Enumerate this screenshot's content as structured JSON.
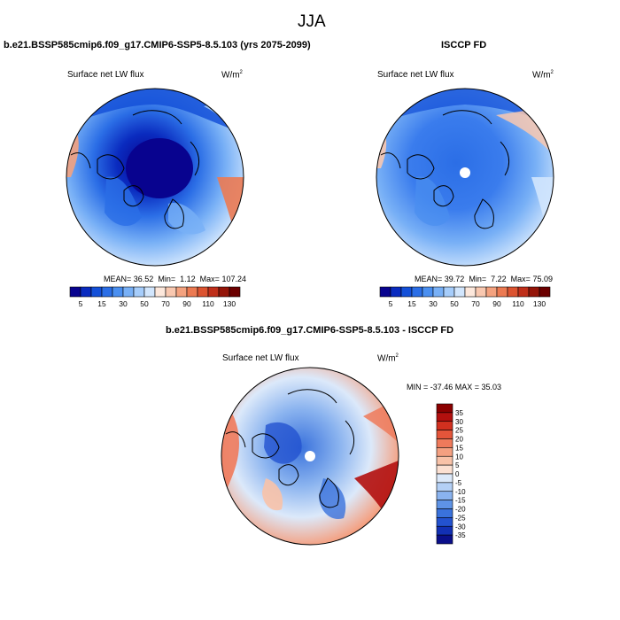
{
  "page_title": "JJA",
  "chart_data": [
    {
      "type": "heatmap",
      "projection": "north-polar-stereographic",
      "title": "b.e21.BSSP585cmip6.f09_g17.CMIP6-SSP5-8.5.103 (yrs 2075-2099)",
      "variable": "Surface net LW flux",
      "units": "W/m",
      "units_exp": "2",
      "stats": {
        "mean_label": "MEAN=",
        "mean": "36.52",
        "min_label": "Min=",
        "min": "1.12",
        "max_label": "Max=",
        "max": "107.24"
      },
      "colorbar": {
        "levels": [
          5,
          10,
          15,
          20,
          30,
          40,
          50,
          60,
          70,
          80,
          90,
          100,
          110,
          120,
          130
        ],
        "tick_labels": [
          "5",
          "15",
          "30",
          "50",
          "70",
          "90",
          "110",
          "130"
        ],
        "colors": [
          "#08038f",
          "#0a2bbf",
          "#1450d8",
          "#2b6ee6",
          "#4a8ff0",
          "#78b0f6",
          "#a6cdfb",
          "#d2e6fd",
          "#fde8dc",
          "#f9c8b0",
          "#f4a27f",
          "#ec7a52",
          "#dc5431",
          "#bf2f1a",
          "#941509",
          "#6b0000"
        ]
      }
    },
    {
      "type": "heatmap",
      "projection": "north-polar-stereographic",
      "title": "ISCCP FD",
      "variable": "Surface net LW flux",
      "units": "W/m",
      "units_exp": "2",
      "stats": {
        "mean_label": "MEAN=",
        "mean": "39.72",
        "min_label": "Min=",
        "min": "7.22",
        "max_label": "Max=",
        "max": "75.09"
      },
      "colorbar": {
        "levels": [
          5,
          10,
          15,
          20,
          30,
          40,
          50,
          60,
          70,
          80,
          90,
          100,
          110,
          120,
          130
        ],
        "tick_labels": [
          "5",
          "15",
          "30",
          "50",
          "70",
          "90",
          "110",
          "130"
        ],
        "colors": [
          "#08038f",
          "#0a2bbf",
          "#1450d8",
          "#2b6ee6",
          "#4a8ff0",
          "#78b0f6",
          "#a6cdfb",
          "#d2e6fd",
          "#fde8dc",
          "#f9c8b0",
          "#f4a27f",
          "#ec7a52",
          "#dc5431",
          "#bf2f1a",
          "#941509",
          "#6b0000"
        ]
      }
    },
    {
      "type": "heatmap",
      "projection": "north-polar-stereographic",
      "title": "b.e21.BSSP585cmip6.f09_g17.CMIP6-SSP5-8.5.103 - ISCCP FD",
      "variable": "Surface net LW flux",
      "units": "W/m",
      "units_exp": "2",
      "stats_text": "MIN = -37.46 MAX =  35.03",
      "colorbar": {
        "levels": [
          35,
          30,
          25,
          20,
          15,
          10,
          5,
          0,
          -5,
          -10,
          -15,
          -20,
          -25,
          -30,
          -35
        ],
        "tick_labels": [
          "35",
          "30",
          "25",
          "20",
          "15",
          "10",
          "5",
          "0",
          "-5",
          "-10",
          "-15",
          "-20",
          "-25",
          "-30",
          "-35"
        ],
        "colors": [
          "#8b0000",
          "#b3100e",
          "#d2301f",
          "#e4553a",
          "#ef7a5b",
          "#f4a081",
          "#f8c2a8",
          "#fbe0d2",
          "#dce9fa",
          "#b4d0f6",
          "#8ab3ef",
          "#5e93e6",
          "#3a72dc",
          "#2352cf",
          "#1230b4",
          "#0a0f8a"
        ]
      }
    }
  ]
}
